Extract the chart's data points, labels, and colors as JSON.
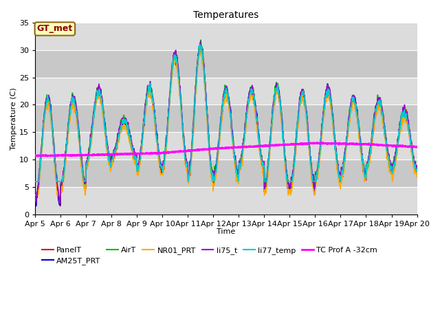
{
  "title": "Temperatures",
  "xlabel": "Time",
  "ylabel": "Temperature (C)",
  "xlim": [
    0,
    15
  ],
  "ylim": [
    0,
    35
  ],
  "yticks": [
    0,
    5,
    10,
    15,
    20,
    25,
    30,
    35
  ],
  "xtick_labels": [
    "Apr 5",
    "Apr 6",
    "Apr 7",
    "Apr 8",
    "Apr 9",
    "Apr 10",
    "Apr 11",
    "Apr 12",
    "Apr 13",
    "Apr 14",
    "Apr 15",
    "Apr 16",
    "Apr 17",
    "Apr 18",
    "Apr 19",
    "Apr 20"
  ],
  "axes_bg_light": "#dcdcdc",
  "axes_bg_dark": "#c8c8c8",
  "grid_color": "#ffffff",
  "annotation_text": "GT_met",
  "annotation_color": "#8B0000",
  "annotation_bg": "#ffffbb",
  "annotation_border": "#8B6914",
  "series": {
    "PanelT": {
      "color": "#dd0000",
      "lw": 1.2
    },
    "AM25T_PRT": {
      "color": "#0000cc",
      "lw": 1.2
    },
    "AirT": {
      "color": "#00bb00",
      "lw": 1.2
    },
    "NR01_PRT": {
      "color": "#ffaa00",
      "lw": 1.2
    },
    "li75_t": {
      "color": "#9900cc",
      "lw": 1.2
    },
    "li77_temp": {
      "color": "#00cccc",
      "lw": 1.2
    },
    "TC Prof A -32cm": {
      "color": "#ff00ff",
      "lw": 2.0
    }
  },
  "legend_fontsize": 8,
  "title_fontsize": 10,
  "axis_label_fontsize": 8,
  "tick_fontsize": 8,
  "band_colors": [
    "#dcdcdc",
    "#c8c8c8",
    "#dcdcdc",
    "#c8c8c8",
    "#dcdcdc",
    "#c8c8c8",
    "#dcdcdc"
  ]
}
